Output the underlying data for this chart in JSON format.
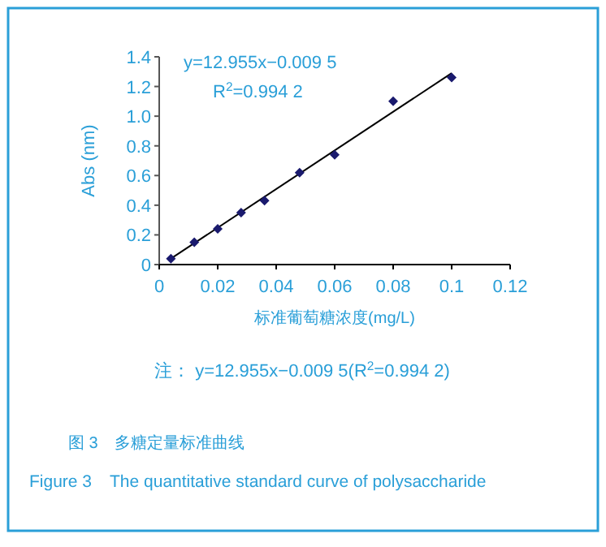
{
  "chart_data": {
    "type": "scatter",
    "title": "图 3　多糖定量标准曲线",
    "subtitle": "Figure 3　The quantitative standard curve of polysaccharide",
    "xlabel": "标准葡萄糖浓度(mg/L)",
    "ylabel": "Abs (nm)",
    "x": [
      0.004,
      0.012,
      0.02,
      0.028,
      0.036,
      0.048,
      0.06,
      0.08,
      0.1
    ],
    "series": [
      {
        "color": "#1a1a6e",
        "marker": "diamond",
        "values": [
          0.04,
          0.15,
          0.24,
          0.35,
          0.43,
          0.62,
          0.74,
          1.1,
          1.26
        ]
      },
      {
        "type": "line",
        "color": "#000000",
        "x": [
          0.004,
          0.1
        ],
        "values": [
          0.04,
          1.29
        ]
      }
    ],
    "annotations": [
      "y=12.955x−0.009 5",
      "R$^{2}$=0.994 2",
      "注：  y=12.955x−0.009 5(R$^{2}$=0.994 2)"
    ],
    "xlim": [
      0,
      0.12
    ],
    "xticks": [
      0,
      0.02,
      0.04,
      0.06,
      0.08,
      0.1,
      0.12
    ],
    "ylim": [
      0,
      1.4
    ],
    "yticks": [
      0,
      0.2,
      0.4,
      0.6,
      0.8,
      {
        "value": 1,
        "label": "1.0"
      },
      1.2,
      1.4
    ],
    "grid": false
  }
}
